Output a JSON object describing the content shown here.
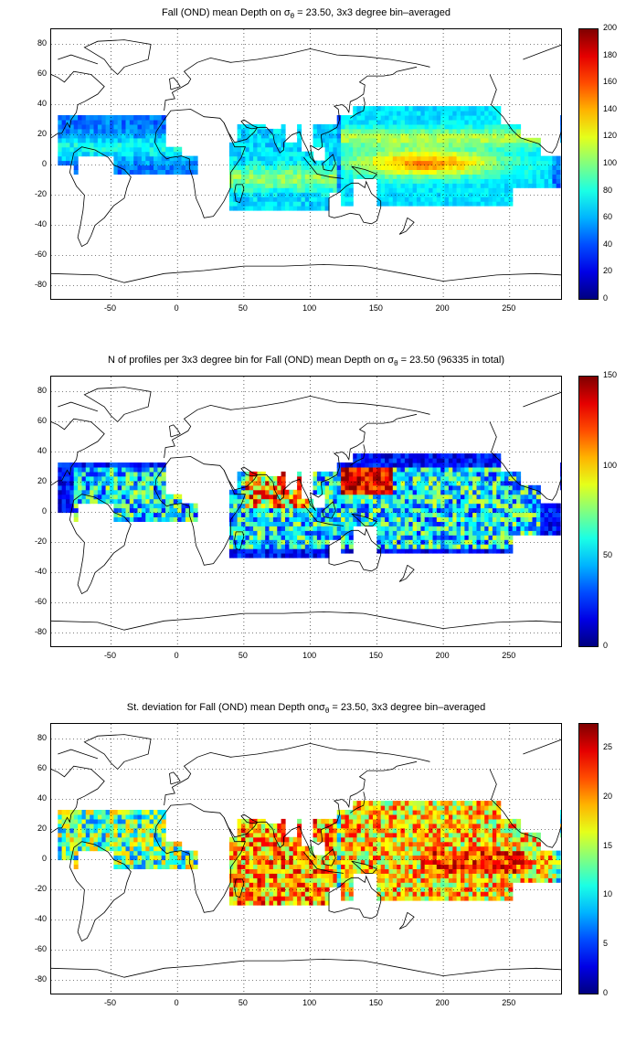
{
  "panels": [
    {
      "title_prefix": "Fall (OND) mean Depth on ",
      "title_symbol": "σ",
      "title_subscript": "θ",
      "title_suffix": " = 23.50, 3x3 degree bin–averaged",
      "colorbar_ticks": [
        "200",
        "180",
        "160",
        "140",
        "120",
        "100",
        "80",
        "60",
        "40",
        "20",
        "0"
      ],
      "color_range": [
        0,
        200
      ],
      "field": "mean-depth"
    },
    {
      "title_prefix": "N of profiles per 3x3 degree bin for Fall (OND) mean Depth on ",
      "title_symbol": "σ",
      "title_subscript": "θ",
      "title_suffix": " = 23.50 (96335 in total)",
      "colorbar_ticks": [
        "150",
        "100",
        "50",
        "0"
      ],
      "color_range": [
        0,
        150
      ],
      "field": "profile-count"
    },
    {
      "title_prefix": "St. deviation for Fall (OND) mean Depth on",
      "title_symbol": "σ",
      "title_subscript": "θ",
      "title_suffix": " = 23.50, 3x3 degree bin–averaged",
      "colorbar_ticks": [
        "25",
        "20",
        "15",
        "10",
        "5",
        "0"
      ],
      "color_range": [
        0,
        27.5
      ],
      "field": "std-deviation"
    }
  ],
  "axes": {
    "x_ticks": [
      "-50",
      "0",
      "50",
      "100",
      "150",
      "200",
      "250"
    ],
    "y_ticks": [
      "80",
      "60",
      "40",
      "20",
      "0",
      "-20",
      "-40",
      "-60",
      "-80"
    ],
    "x_range": [
      -95,
      290
    ],
    "y_range": [
      -90,
      90
    ]
  },
  "colormap": "jet",
  "grid": "dotted"
}
